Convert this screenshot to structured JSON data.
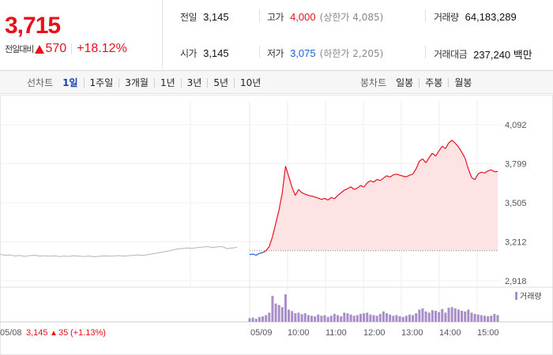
{
  "summary": {
    "price": "3,715",
    "change_label": "전일대비",
    "change_value": "570",
    "change_pct": "+18.12%",
    "prev_close": {
      "label": "전일",
      "value": "3,145"
    },
    "open": {
      "label": "시가",
      "value": "3,145"
    },
    "high": {
      "label": "고가",
      "value": "4,000",
      "sub": "(상한가 4,085)"
    },
    "low": {
      "label": "저가",
      "value": "3,075",
      "sub": "(하한가 2,205)"
    },
    "volume": {
      "label": "거래량",
      "value": "64,183,289"
    },
    "amount": {
      "label": "거래대금",
      "value": "237,240 백만"
    }
  },
  "toolbar": {
    "line_title": "선차트",
    "line_tabs": [
      "1일",
      "1주일",
      "3개월",
      "1년",
      "3년",
      "5년",
      "10년"
    ],
    "line_active": "1일",
    "candle_title": "봉차트",
    "candle_tabs": [
      "일봉",
      "주봉",
      "월봉"
    ]
  },
  "colors": {
    "up": "#e7111b",
    "down": "#1462d6",
    "area_fill": "#fde3e4",
    "volume": "#a98fc9"
  },
  "icons": {
    "up_triangle": "▲"
  },
  "chart_data": {
    "type": "line",
    "y_ticks": [
      "4,092",
      "3,799",
      "3,505",
      "3,212",
      "2,918"
    ],
    "ylim": [
      2918,
      4092
    ],
    "reference": {
      "label": "previous close",
      "value": 3145
    },
    "prev_day": {
      "date": "05/08",
      "close": "3,145",
      "change": "35",
      "change_pct": "(+1.13%)",
      "values": [
        3118,
        3110,
        3113,
        3105,
        3109,
        3102,
        3108,
        3111,
        3104,
        3107,
        3103,
        3106,
        3100,
        3104,
        3102,
        3107,
        3103,
        3101,
        3105,
        3099,
        3102,
        3106,
        3103,
        3105,
        3108,
        3104,
        3107,
        3110,
        3113,
        3109,
        3115,
        3122,
        3128,
        3135,
        3142,
        3150,
        3158,
        3161,
        3165,
        3162,
        3168,
        3172,
        3175,
        3169,
        3173,
        3176,
        3160,
        3165,
        3170
      ]
    },
    "today": {
      "date": "05/09",
      "x_ticks": [
        "10:00",
        "11:00",
        "12:00",
        "13:00",
        "14:00",
        "15:00"
      ],
      "values": [
        3115,
        3120,
        3110,
        3125,
        3130,
        3145,
        3175,
        3250,
        3350,
        3450,
        3580,
        3780,
        3700,
        3620,
        3560,
        3605,
        3580,
        3570,
        3560,
        3555,
        3548,
        3540,
        3530,
        3538,
        3525,
        3545,
        3535,
        3560,
        3580,
        3600,
        3610,
        3625,
        3605,
        3615,
        3635,
        3622,
        3655,
        3670,
        3660,
        3680,
        3672,
        3690,
        3708,
        3698,
        3715,
        3720,
        3712,
        3705,
        3700,
        3712,
        3720,
        3760,
        3818,
        3835,
        3805,
        3845,
        3878,
        3855,
        3895,
        3930,
        3912,
        3955,
        3975,
        3952,
        3925,
        3885,
        3840,
        3760,
        3695,
        3678,
        3722,
        3735,
        3728,
        3745,
        3752,
        3738,
        3740
      ],
      "volume_label": "거래량",
      "volume_values": [
        12,
        14,
        10,
        16,
        18,
        22,
        30,
        85,
        60,
        55,
        48,
        90,
        40,
        35,
        28,
        30,
        25,
        28,
        22,
        20,
        18,
        24,
        20,
        22,
        16,
        20,
        26,
        22,
        18,
        30,
        28,
        24,
        20,
        22,
        26,
        28,
        30,
        24,
        22,
        20,
        26,
        34,
        28,
        24,
        20,
        22,
        18,
        16,
        20,
        24,
        22,
        28,
        40,
        44,
        34,
        30,
        38,
        36,
        32,
        42,
        30,
        46,
        48,
        44,
        40,
        36,
        34,
        40,
        30,
        26,
        24,
        22,
        20,
        18,
        20,
        26,
        22
      ]
    }
  }
}
